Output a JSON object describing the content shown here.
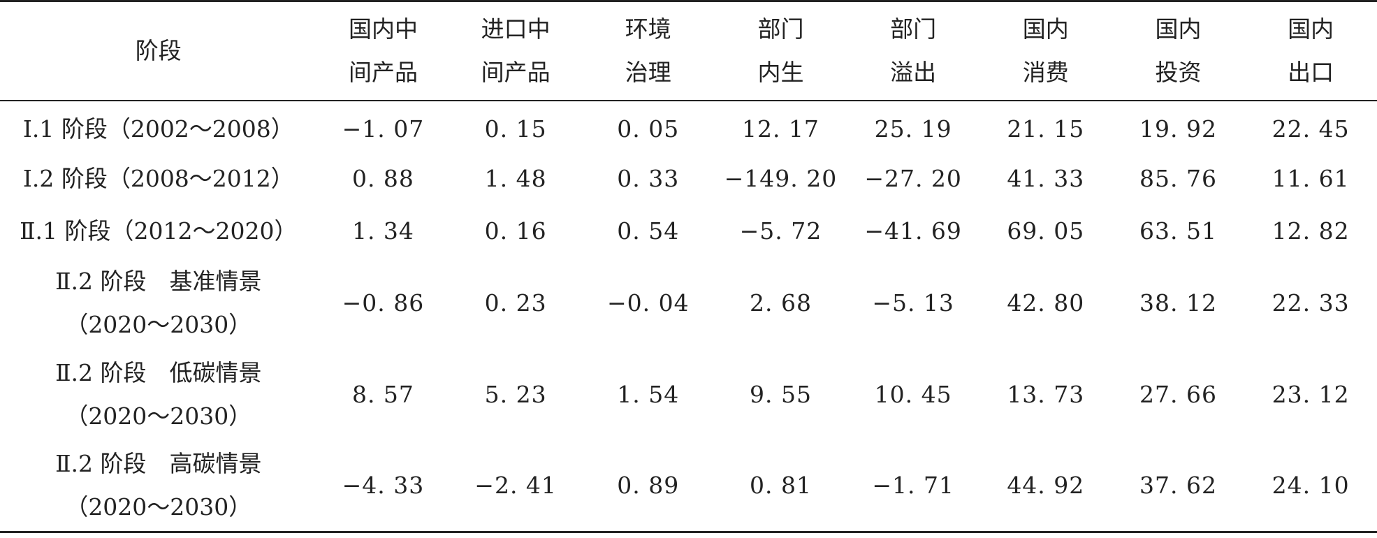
{
  "table": {
    "headers": [
      {
        "lines": [
          "阶段"
        ]
      },
      {
        "lines": [
          "国内中",
          "间产品"
        ]
      },
      {
        "lines": [
          "进口中",
          "间产品"
        ]
      },
      {
        "lines": [
          "环境",
          "治理"
        ]
      },
      {
        "lines": [
          "部门",
          "内生"
        ]
      },
      {
        "lines": [
          "部门",
          "溢出"
        ]
      },
      {
        "lines": [
          "国内",
          "消费"
        ]
      },
      {
        "lines": [
          "国内",
          "投资"
        ]
      },
      {
        "lines": [
          "国内",
          "出口"
        ]
      }
    ],
    "rows": [
      {
        "stage_lines": [
          "Ⅰ.1 阶段（2002～2008）"
        ],
        "values": [
          "−1. 07",
          "0. 15",
          "0. 05",
          "12. 17",
          "25. 19",
          "21. 15",
          "19. 92",
          "22. 45"
        ]
      },
      {
        "stage_lines": [
          "Ⅰ.2 阶段（2008～2012）"
        ],
        "values": [
          "0. 88",
          "1. 48",
          "0. 33",
          "−149. 20",
          "−27. 20",
          "41. 33",
          "85. 76",
          "11. 61"
        ]
      },
      {
        "stage_lines": [
          "Ⅱ.1 阶段（2012～2020）"
        ],
        "values": [
          "1. 34",
          "0. 16",
          "0. 54",
          "−5. 72",
          "−41. 69",
          "69. 05",
          "63. 51",
          "12. 82"
        ]
      },
      {
        "stage_lines": [
          "Ⅱ.2 阶段　基准情景",
          "（2020～2030）"
        ],
        "values": [
          "−0. 86",
          "0. 23",
          "−0. 04",
          "2. 68",
          "−5. 13",
          "42. 80",
          "38. 12",
          "22. 33"
        ]
      },
      {
        "stage_lines": [
          "Ⅱ.2 阶段　低碳情景",
          "（2020～2030）"
        ],
        "values": [
          "8. 57",
          "5. 23",
          "1. 54",
          "9. 55",
          "10. 45",
          "13. 73",
          "27. 66",
          "23. 12"
        ]
      },
      {
        "stage_lines": [
          "Ⅱ.2 阶段　高碳情景",
          "（2020～2030）"
        ],
        "values": [
          "−4. 33",
          "−2. 41",
          "0. 89",
          "0. 81",
          "−1. 71",
          "44. 92",
          "37. 62",
          "24. 10"
        ]
      }
    ]
  }
}
